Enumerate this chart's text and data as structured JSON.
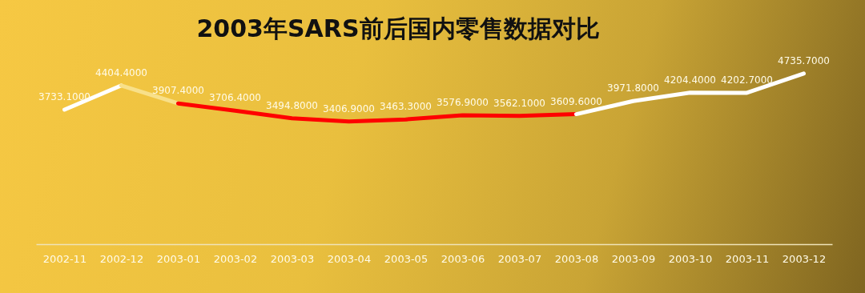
{
  "chart_data": {
    "type": "line",
    "title": "2003年SARS前后国内零售数据对比",
    "categories": [
      "2002-11",
      "2002-12",
      "2003-01",
      "2003-02",
      "2003-03",
      "2003-04",
      "2003-05",
      "2003-06",
      "2003-07",
      "2003-08",
      "2003-09",
      "2003-10",
      "2003-11",
      "2003-12"
    ],
    "series": [
      {
        "color": "#ffffff",
        "values": [
          3733.1,
          4404.4,
          null,
          null,
          null,
          null,
          null,
          null,
          null,
          null,
          null,
          null,
          null,
          null
        ],
        "value_labels": [
          "3733.1000",
          "4404.4000",
          null,
          null,
          null,
          null,
          null,
          null,
          null,
          null,
          null,
          null,
          null,
          null
        ]
      },
      {
        "color": "#f8e08a",
        "values": [
          null,
          4404.4,
          3907.4,
          null,
          null,
          null,
          null,
          null,
          null,
          null,
          null,
          null,
          null,
          null
        ],
        "value_labels": [
          null,
          null,
          "3907.4000",
          null,
          null,
          null,
          null,
          null,
          null,
          null,
          null,
          null,
          null,
          null
        ]
      },
      {
        "color": "#ff0000",
        "values": [
          null,
          null,
          3907.4,
          3706.4,
          3494.8,
          3406.9,
          3463.3,
          3576.9,
          3562.1,
          3609.6,
          null,
          null,
          null,
          null
        ],
        "value_labels": [
          null,
          null,
          null,
          "3706.4000",
          "3494.8000",
          "3406.9000",
          "3463.3000",
          "3576.9000",
          "3562.1000",
          "3609.6000",
          null,
          null,
          null,
          null
        ]
      },
      {
        "color": "#ffffff",
        "values": [
          null,
          null,
          null,
          null,
          null,
          null,
          null,
          null,
          null,
          3609.6,
          3971.8,
          4204.4,
          4202.7,
          4735.7
        ],
        "value_labels": [
          null,
          null,
          null,
          null,
          null,
          null,
          null,
          null,
          null,
          null,
          "3971.8000",
          "4204.4000",
          "4202.7000",
          "4735.7000"
        ]
      }
    ],
    "legend": false
  }
}
